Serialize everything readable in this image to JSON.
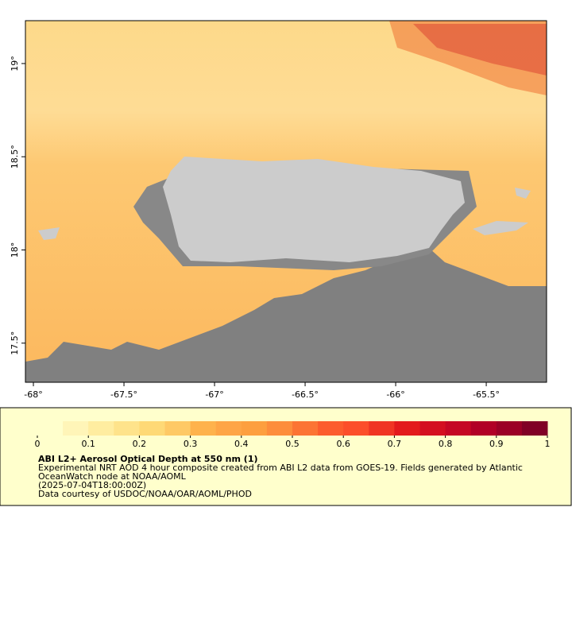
{
  "chart_data": {
    "type": "map",
    "xlim": [
      -68.044,
      -65.167
    ],
    "ylim": [
      17.29,
      19.23
    ],
    "xticks": [
      {
        "value": -68,
        "label": "-68°"
      },
      {
        "value": -67.5,
        "label": "-67.5°"
      },
      {
        "value": -67,
        "label": "-67°"
      },
      {
        "value": -66.5,
        "label": "-66.5°"
      },
      {
        "value": -66,
        "label": "-66°"
      },
      {
        "value": -65.5,
        "label": "-65.5°"
      }
    ],
    "yticks": [
      {
        "value": 17.5,
        "label": "17.5°"
      },
      {
        "value": 18,
        "label": "18°"
      },
      {
        "value": 18.5,
        "label": "18.5°"
      },
      {
        "value": 19,
        "label": "19°"
      }
    ],
    "colorbar": {
      "range": [
        0,
        1
      ],
      "ticks": [
        0,
        0.1,
        0.2,
        0.3,
        0.4,
        0.5,
        0.6,
        0.7,
        0.8,
        0.9,
        1
      ],
      "colors": [
        "#ffffcc",
        "#fff5b8",
        "#ffeda0",
        "#fee38b",
        "#fed976",
        "#fec965",
        "#feb24c",
        "#fea546",
        "#fd9f3f",
        "#fd8d3c",
        "#fc7434",
        "#fc5c2d",
        "#fc4e2a",
        "#f03523",
        "#e31a1c",
        "#d40f20",
        "#c50724",
        "#b10026",
        "#9b0026",
        "#800026"
      ]
    },
    "title": "ABI L2+ Aerosol Optical Depth at 550 nm (1)",
    "caption": [
      "Experimental NRT AOD 4 hour composite created from ABI L2 data from GOES-19. Fields generated by Atlantic",
      "OceanWatch node at NOAA/AOML",
      "(2025-07-04T18:00:00Z)",
      "Data courtesy of USDOC/NOAA/OAR/AOML/PHOD"
    ]
  }
}
